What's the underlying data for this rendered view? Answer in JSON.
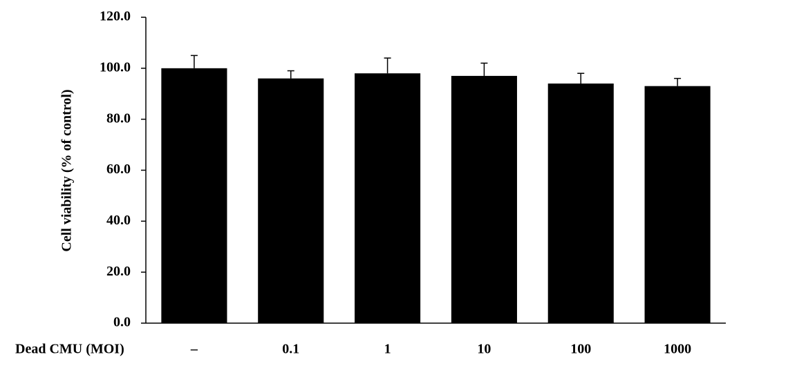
{
  "chart_data": {
    "type": "bar",
    "y_label": "Cell viability (% of control)",
    "x_label": "Dead CMU (MOI)",
    "categories": [
      "–",
      "0.1",
      "1",
      "10",
      "100",
      "1000"
    ],
    "values": [
      100,
      96,
      98,
      97,
      94,
      93
    ],
    "errors": [
      5,
      3,
      6,
      5,
      4,
      3
    ],
    "color": "#000000",
    "ylim": [
      0,
      120
    ],
    "yticks": [
      {
        "value": 0,
        "label": "0.0"
      },
      {
        "value": 20,
        "label": "20.0"
      },
      {
        "value": 40,
        "label": "40.0"
      },
      {
        "value": 60,
        "label": "60.0"
      },
      {
        "value": 80,
        "label": "80.0"
      },
      {
        "value": 100,
        "label": "100.0"
      },
      {
        "value": 120,
        "label": "120.0"
      }
    ],
    "grid": false
  }
}
